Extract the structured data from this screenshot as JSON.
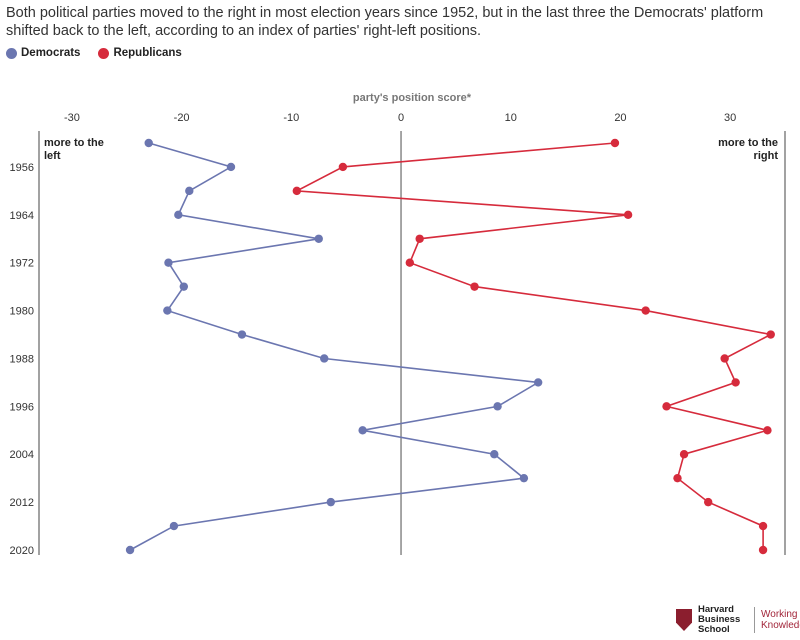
{
  "header": {
    "subtitle": "Both political parties moved to the right in most election years since 1952, but in the last three the Democrats' platform shifted back to the left, according to an index of parties' right-left positions."
  },
  "legend": {
    "items": [
      {
        "label": "Democrats",
        "color": "#6b76b0"
      },
      {
        "label": "Republicans",
        "color": "#d62b3c"
      }
    ]
  },
  "chart_data": {
    "type": "line",
    "xlabel": "party's position score*",
    "xlim": [
      -33,
      35
    ],
    "x_ticks": [
      -30,
      -20,
      -10,
      0,
      10,
      20,
      30
    ],
    "y_ticks": [
      1956,
      1964,
      1972,
      1980,
      1988,
      1996,
      2004,
      2012,
      2020
    ],
    "ylim": [
      1952,
      2020
    ],
    "annotations": {
      "left": "more to the left",
      "right": "more to the right"
    },
    "series": [
      {
        "name": "Democrats",
        "color": "#6b76b0",
        "points": [
          {
            "year": 1952,
            "score": -23
          },
          {
            "year": 1956,
            "score": -15.5
          },
          {
            "year": 1960,
            "score": -19.3
          },
          {
            "year": 1964,
            "score": -20.3
          },
          {
            "year": 1968,
            "score": -7.5
          },
          {
            "year": 1972,
            "score": -21.2
          },
          {
            "year": 1976,
            "score": -19.8
          },
          {
            "year": 1980,
            "score": -21.3
          },
          {
            "year": 1984,
            "score": -14.5
          },
          {
            "year": 1988,
            "score": -7
          },
          {
            "year": 1992,
            "score": 12.5
          },
          {
            "year": 1996,
            "score": 8.8
          },
          {
            "year": 2000,
            "score": -3.5
          },
          {
            "year": 2004,
            "score": 8.5
          },
          {
            "year": 2008,
            "score": 11.2
          },
          {
            "year": 2012,
            "score": -6.4
          },
          {
            "year": 2016,
            "score": -20.7
          },
          {
            "year": 2020,
            "score": -24.7
          }
        ]
      },
      {
        "name": "Republicans",
        "color": "#d62b3c",
        "points": [
          {
            "year": 1952,
            "score": 19.5
          },
          {
            "year": 1956,
            "score": -5.3
          },
          {
            "year": 1960,
            "score": -9.5
          },
          {
            "year": 1964,
            "score": 20.7
          },
          {
            "year": 1968,
            "score": 1.7
          },
          {
            "year": 1972,
            "score": 0.8
          },
          {
            "year": 1976,
            "score": 6.7
          },
          {
            "year": 1980,
            "score": 22.3
          },
          {
            "year": 1984,
            "score": 33.7
          },
          {
            "year": 1988,
            "score": 29.5
          },
          {
            "year": 1992,
            "score": 30.5
          },
          {
            "year": 1996,
            "score": 24.2
          },
          {
            "year": 2000,
            "score": 33.4
          },
          {
            "year": 2004,
            "score": 25.8
          },
          {
            "year": 2008,
            "score": 25.2
          },
          {
            "year": 2012,
            "score": 28
          },
          {
            "year": 2016,
            "score": 33
          },
          {
            "year": 2020,
            "score": 33
          }
        ]
      }
    ]
  },
  "footer": {
    "brand_line1": "Harvard",
    "brand_line2": "Business",
    "brand_line3": "School",
    "wk_line1": "Working",
    "wk_line2": "Knowledge",
    "logo_icon": "hbs-shield-icon"
  }
}
